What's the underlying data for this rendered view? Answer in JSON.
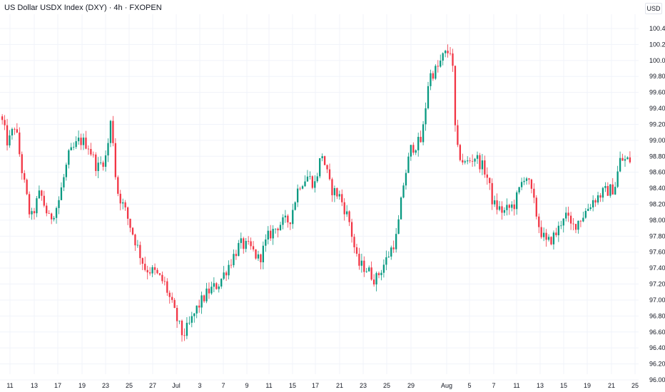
{
  "header": {
    "title": "US Dollar USDX Index (DXY) · 4h · FXOPEN",
    "currency": "USD"
  },
  "chart_data": {
    "type": "candlestick",
    "title": "US Dollar USDX Index (DXY) · 4h · FXOPEN",
    "currency": "USD",
    "ylim": [
      96.0,
      100.4
    ],
    "grid": true,
    "colors": {
      "up": "#089981",
      "down": "#f23645",
      "grid": "#f0f3fa"
    },
    "y_ticks": [
      "100.40",
      "100.20",
      "100.00",
      "99.80",
      "99.60",
      "99.40",
      "99.20",
      "99.00",
      "98.80",
      "98.60",
      "98.40",
      "98.20",
      "98.00",
      "97.80",
      "97.60",
      "97.40",
      "97.20",
      "97.00",
      "96.80",
      "96.60",
      "96.40",
      "96.20",
      "96.00"
    ],
    "x_ticks": [
      "11",
      "13",
      "17",
      "19",
      "23",
      "25",
      "27",
      "Jul",
      "3",
      "7",
      "9",
      "11",
      "15",
      "17",
      "21",
      "23",
      "25",
      "29",
      "Aug",
      "5",
      "7",
      "11",
      "13",
      "15",
      "19",
      "21",
      "25"
    ],
    "path": [
      [
        0,
        99.3
      ],
      [
        10,
        98.95
      ],
      [
        20,
        99.2
      ],
      [
        30,
        98.6
      ],
      [
        42,
        98.0
      ],
      [
        55,
        98.35
      ],
      [
        68,
        98.0
      ],
      [
        80,
        98.2
      ],
      [
        95,
        98.8
      ],
      [
        110,
        99.0
      ],
      [
        122,
        98.95
      ],
      [
        135,
        98.65
      ],
      [
        148,
        98.8
      ],
      [
        155,
        99.3
      ],
      [
        162,
        98.4
      ],
      [
        175,
        98.1
      ],
      [
        190,
        97.7
      ],
      [
        202,
        97.4
      ],
      [
        215,
        97.35
      ],
      [
        230,
        97.2
      ],
      [
        245,
        96.8
      ],
      [
        255,
        96.55
      ],
      [
        265,
        96.7
      ],
      [
        275,
        96.9
      ],
      [
        290,
        97.1
      ],
      [
        305,
        97.2
      ],
      [
        320,
        97.45
      ],
      [
        335,
        97.7
      ],
      [
        350,
        97.65
      ],
      [
        362,
        97.5
      ],
      [
        375,
        97.8
      ],
      [
        390,
        97.95
      ],
      [
        405,
        98.0
      ],
      [
        418,
        98.45
      ],
      [
        430,
        98.55
      ],
      [
        440,
        98.45
      ],
      [
        450,
        98.85
      ],
      [
        462,
        98.4
      ],
      [
        475,
        98.3
      ],
      [
        488,
        98.0
      ],
      [
        500,
        97.45
      ],
      [
        512,
        97.4
      ],
      [
        525,
        97.25
      ],
      [
        540,
        97.5
      ],
      [
        555,
        97.8
      ],
      [
        565,
        98.5
      ],
      [
        575,
        98.9
      ],
      [
        590,
        99.0
      ],
      [
        600,
        99.8
      ],
      [
        612,
        99.9
      ],
      [
        620,
        100.05
      ],
      [
        632,
        100.15
      ],
      [
        638,
        98.9
      ],
      [
        650,
        98.7
      ],
      [
        665,
        98.8
      ],
      [
        680,
        98.6
      ],
      [
        690,
        98.2
      ],
      [
        705,
        98.1
      ],
      [
        720,
        98.2
      ],
      [
        735,
        98.6
      ],
      [
        745,
        98.3
      ],
      [
        755,
        97.9
      ],
      [
        765,
        97.7
      ],
      [
        780,
        97.85
      ],
      [
        790,
        98.1
      ],
      [
        800,
        97.9
      ],
      [
        815,
        98.05
      ],
      [
        830,
        98.25
      ],
      [
        845,
        98.35
      ],
      [
        860,
        98.4
      ],
      [
        868,
        98.75
      ],
      [
        880,
        98.75
      ]
    ]
  }
}
